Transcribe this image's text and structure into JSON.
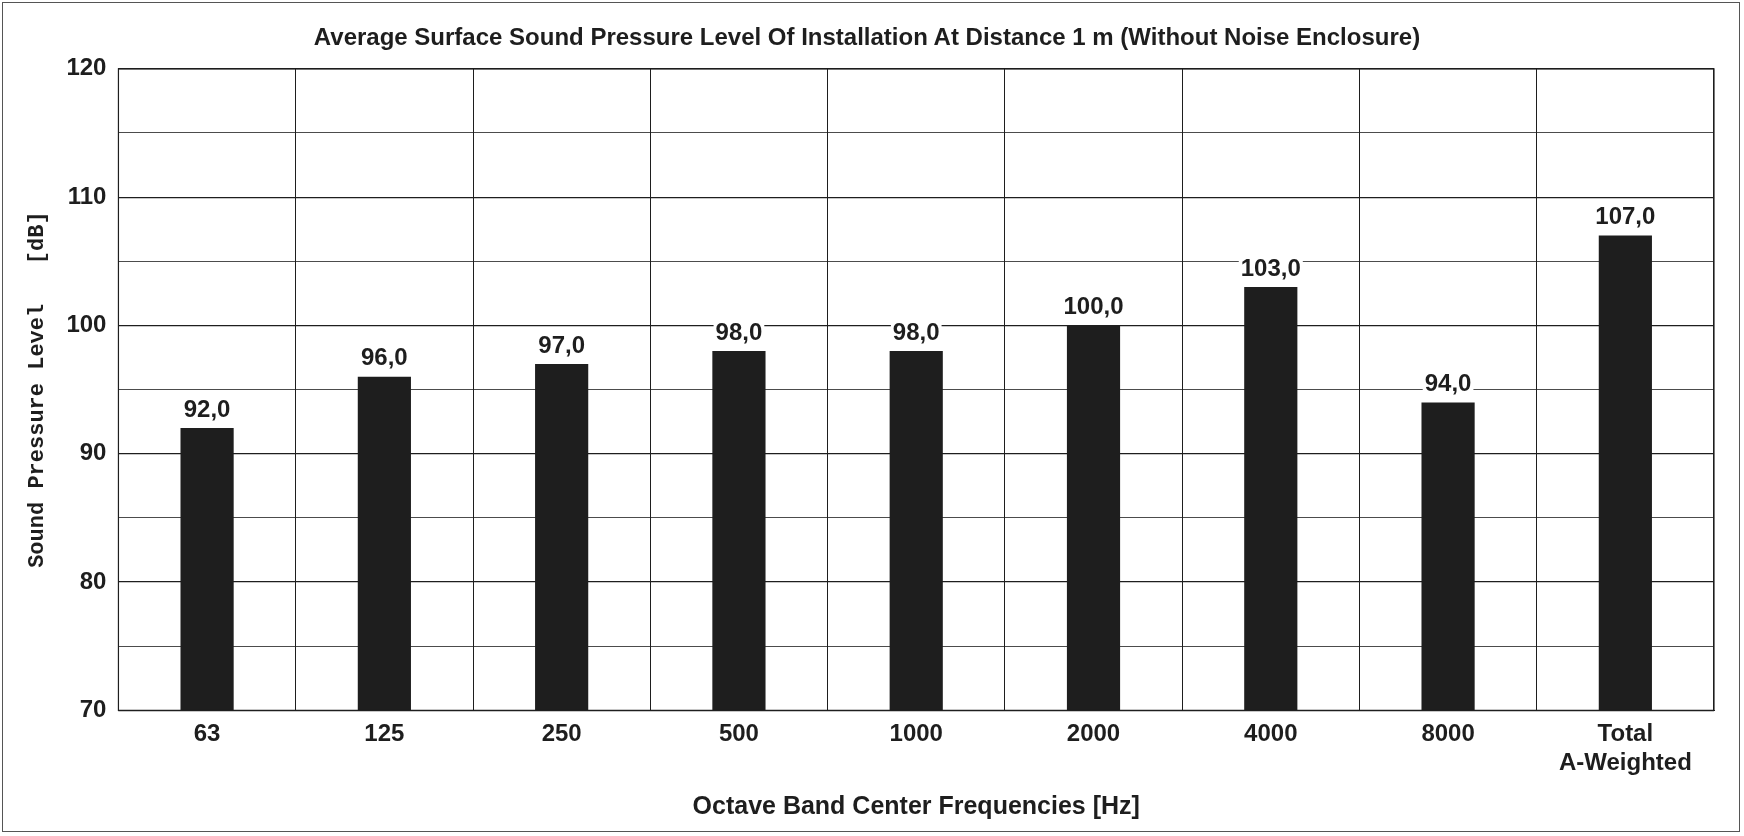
{
  "chart_data": {
    "type": "bar",
    "title": "Average Surface Sound Pressure Level Of Installation At Distance 1 m (Without Noise Enclosure)",
    "xlabel": "Octave Band Center Frequencies [Hz]",
    "ylabel": "Sound Pressure Level   [dB]",
    "categories": [
      "63",
      "125",
      "250",
      "500",
      "1000",
      "2000",
      "4000",
      "8000",
      "Total\nA-Weighted"
    ],
    "values": [
      92,
      96,
      97,
      98,
      98,
      100,
      103,
      94,
      107
    ],
    "value_labels": [
      "92,0",
      "96,0",
      "97,0",
      "98,0",
      "98,0",
      "100,0",
      "103,0",
      "94,0",
      "107,0"
    ],
    "color": "#1e1e1e",
    "ylim": [
      70,
      120
    ],
    "yticks": [
      70,
      {
        "value": 75,
        "label": null
      },
      80,
      {
        "value": 85,
        "label": null
      },
      90,
      {
        "value": 95,
        "label": null
      },
      100,
      {
        "value": 105,
        "label": null
      },
      110,
      {
        "value": 115,
        "label": null
      },
      120
    ],
    "grid": true,
    "legend": false
  }
}
